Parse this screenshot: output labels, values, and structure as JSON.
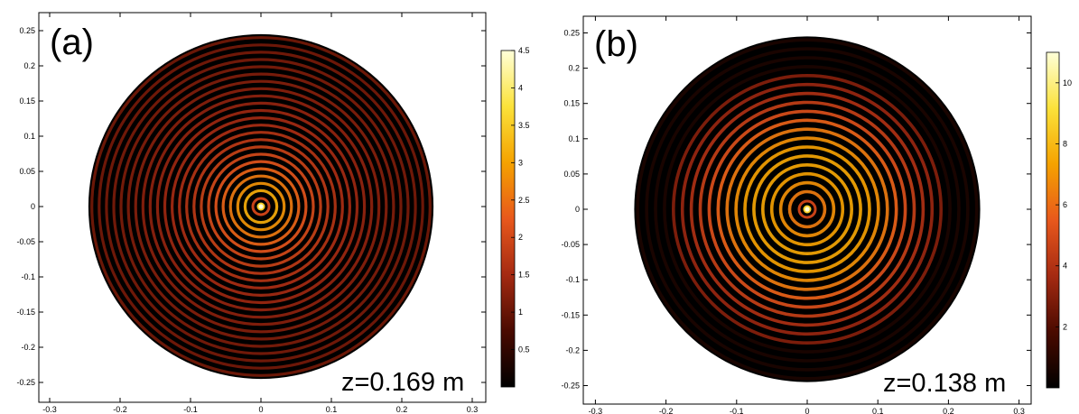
{
  "chart_data": [
    {
      "type": "heatmap",
      "panel_label": "(a)",
      "annotation": "z=0.169 m",
      "xlim": [
        -0.3,
        0.3
      ],
      "ylim": [
        -0.25,
        0.25
      ],
      "xticks": [
        "-0.3",
        "-0.2",
        "-0.1",
        "0",
        "0.1",
        "0.2",
        "0.3"
      ],
      "yticks": [
        "0.25",
        "0.2",
        "0.15",
        "0.1",
        "0.05",
        "0",
        "-0.05",
        "-0.1",
        "-0.15",
        "-0.2",
        "-0.25"
      ],
      "aperture_radius": 0.245,
      "colorbar": {
        "min": 0,
        "max": 4.5,
        "ticks": [
          "4.5",
          "4",
          "3.5",
          "3",
          "2.5",
          "2",
          "1.5",
          "1",
          "0.5"
        ]
      },
      "colormap": [
        "#000000",
        "#4a0a00",
        "#a52a12",
        "#e8581c",
        "#f5a200",
        "#fbe23a",
        "#ffffd8"
      ],
      "peak_value": 4.5,
      "ring_count": 22,
      "ring_envelope": "decaying from center"
    },
    {
      "type": "heatmap",
      "panel_label": "(b)",
      "annotation": "z=0.138 m",
      "xlim": [
        -0.3,
        0.3
      ],
      "ylim": [
        -0.25,
        0.25
      ],
      "xticks": [
        "-0.3",
        "-0.2",
        "-0.1",
        "0",
        "0.1",
        "0.2",
        "0.3"
      ],
      "yticks": [
        "0.25",
        "0.2",
        "0.15",
        "0.1",
        "0.05",
        "0",
        "-0.05",
        "-0.1",
        "-0.15",
        "-0.2",
        "-0.25"
      ],
      "aperture_radius": 0.245,
      "colorbar": {
        "min": 0,
        "max": 11,
        "ticks": [
          "10",
          "8",
          "6",
          "4",
          "2"
        ]
      },
      "colormap": [
        "#000000",
        "#4a0a00",
        "#a52a12",
        "#e8581c",
        "#f5a200",
        "#fbe23a",
        "#ffffd8"
      ],
      "peak_value": 11,
      "ring_count": 18,
      "ring_envelope": "bright band up to r~0.1, dark edge beyond 0.2"
    }
  ]
}
